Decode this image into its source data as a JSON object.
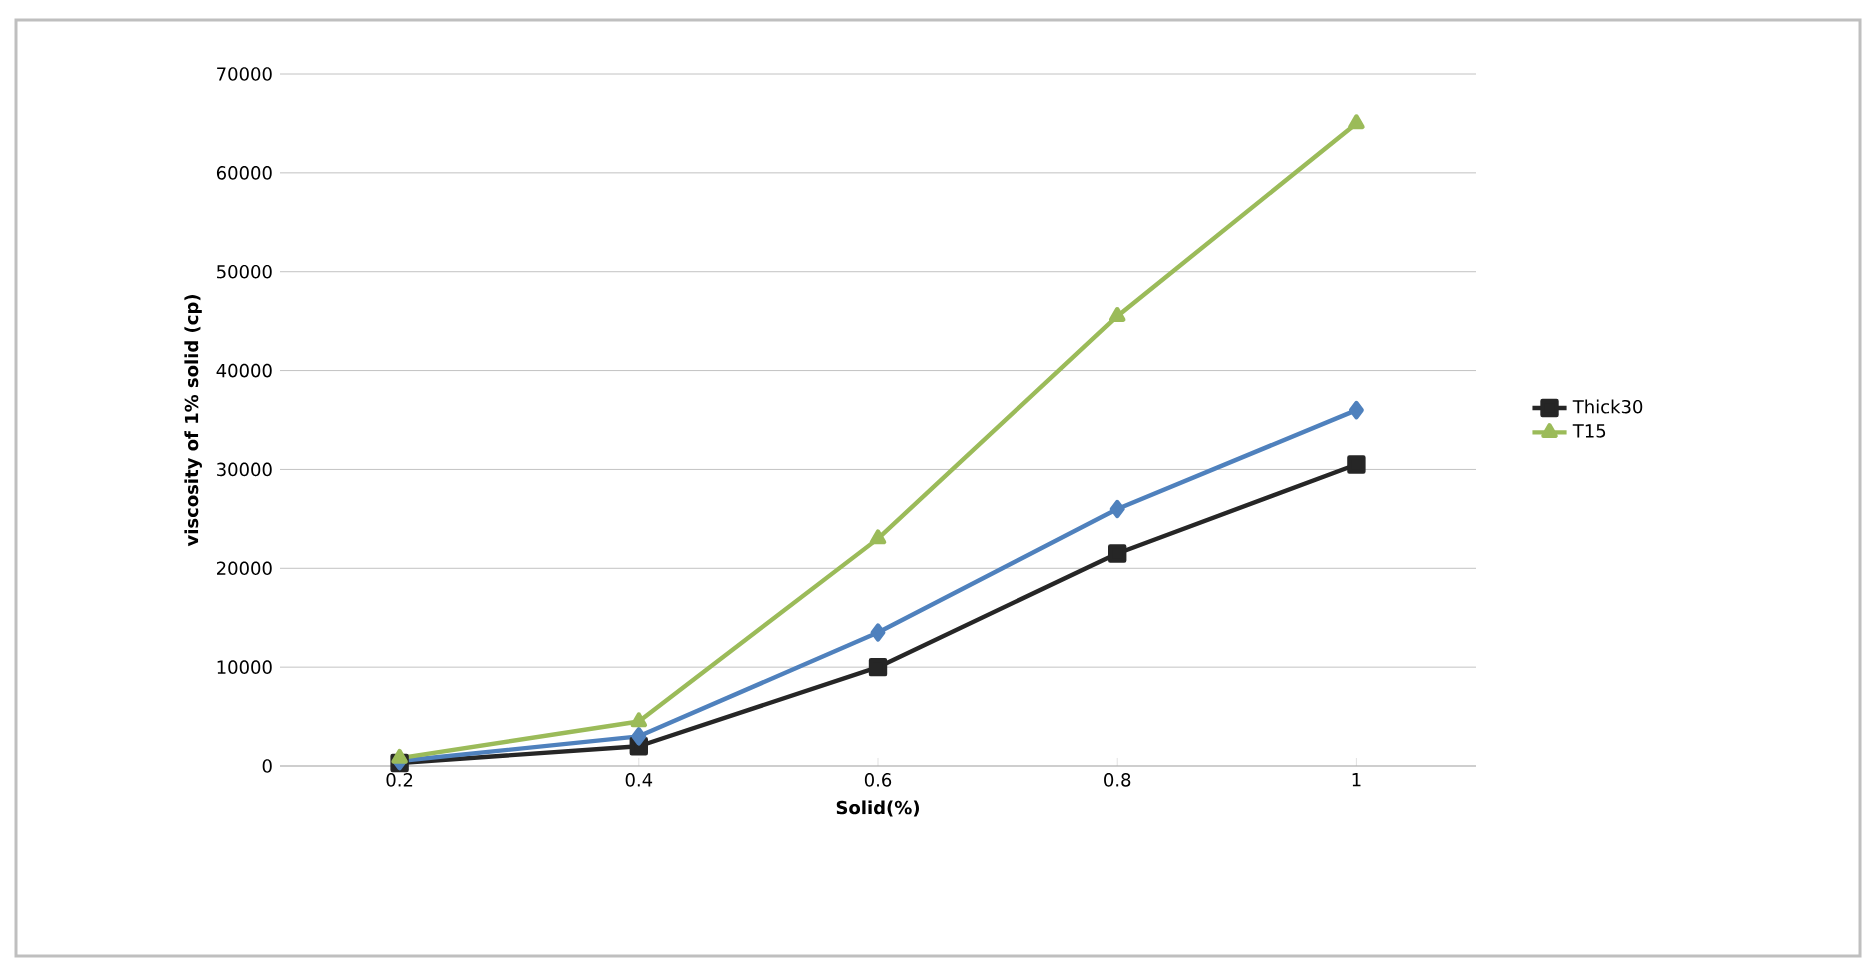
{
  "chart_data": {
    "type": "line",
    "xlabel": "Solid(%)",
    "ylabel": "viscosity of 1% solid (cp)",
    "categories": [
      "0.2",
      "0.4",
      "0.6",
      "0.8",
      "1"
    ],
    "series": [
      {
        "name": "Thick30",
        "color": "#262626",
        "marker": "square",
        "values": [
          300,
          2000,
          10000,
          21500,
          30500
        ]
      },
      {
        "color": "#4f81bd",
        "marker": "diamond",
        "values": [
          500,
          3000,
          13500,
          26000,
          36000
        ]
      },
      {
        "name": "T15",
        "color": "#9bbb59",
        "marker": "triangle",
        "values": [
          800,
          4500,
          23000,
          45500,
          65000
        ]
      }
    ],
    "ylim": [
      0,
      70000
    ],
    "yticks": [
      0,
      10000,
      20000,
      30000,
      40000,
      50000,
      60000,
      70000
    ],
    "grid": "y",
    "legend": "right",
    "line_style": "solid"
  }
}
